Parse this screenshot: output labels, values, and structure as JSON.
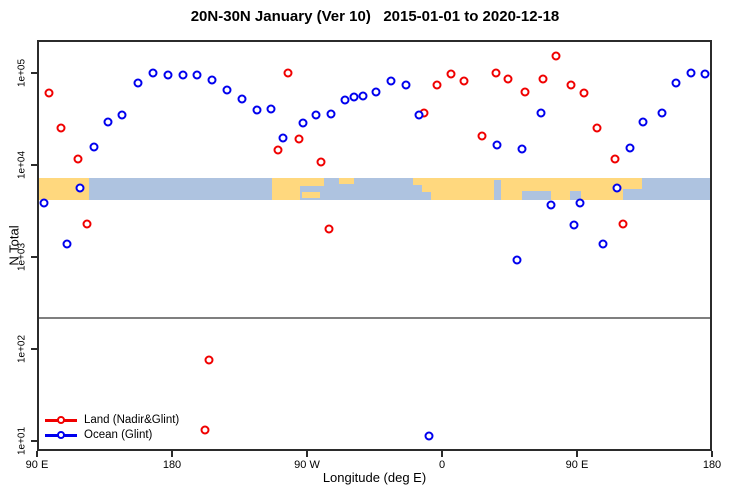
{
  "title": "20N-30N January (Ver 10)   2015-01-01 to 2020-12-18",
  "chart_data": {
    "type": "scatter",
    "title": "20N-30N January (Ver 10)   2015-01-01 to 2020-12-18",
    "xlabel": "Longitude (deg E)",
    "ylabel": "N Total",
    "x_axis": {
      "note": "longitude axis wraps: 90E to 180 to 90W to 0 to 90E to 180 (450 deg span)",
      "range_axis_deg": [
        90,
        540
      ],
      "ticks": [
        {
          "deg": 90,
          "label": "90 E"
        },
        {
          "deg": 180,
          "label": "180"
        },
        {
          "deg": 270,
          "label": "90 W"
        },
        {
          "deg": 360,
          "label": "0"
        },
        {
          "deg": 450,
          "label": "90 E"
        },
        {
          "deg": 540,
          "label": "180"
        }
      ]
    },
    "y_axis": {
      "scale": "log10",
      "range_log10": [
        0.89,
        5.36
      ],
      "ticks": [
        {
          "value": 10,
          "label": "1e+01"
        },
        {
          "value": 100,
          "label": "1e+02"
        },
        {
          "value": 1000,
          "label": "1e+03"
        },
        {
          "value": 10000,
          "label": "1e+04"
        },
        {
          "value": 100000,
          "label": "1e+05"
        }
      ]
    },
    "reference_line": {
      "value": 230,
      "color": "#7f7f7f"
    },
    "map_band": {
      "value_top": 7600,
      "value_bottom": 4350,
      "ocean_color": "#aec3e0",
      "land_color": "#ffd87e",
      "land_patches": [
        {
          "d1": 90,
          "d2": 123,
          "t": 0,
          "b": 1
        },
        {
          "d1": 245,
          "d2": 264,
          "t": 0,
          "b": 1
        },
        {
          "d1": 264,
          "d2": 280,
          "t": 0,
          "b": 0.38
        },
        {
          "d1": 265,
          "d2": 277,
          "t": 0.62,
          "b": 0.9
        },
        {
          "d1": 290,
          "d2": 300,
          "t": 0,
          "b": 0.27
        },
        {
          "d1": 339,
          "d2": 347,
          "t": 0,
          "b": 0.3
        },
        {
          "d1": 345,
          "d2": 479,
          "t": 0,
          "b": 1
        },
        {
          "d1": 479,
          "d2": 492,
          "t": 0,
          "b": 0.5
        }
      ],
      "ocean_notches": [
        {
          "d1": 345,
          "d2": 351,
          "t": 0.65,
          "b": 1
        },
        {
          "d1": 393,
          "d2": 398,
          "t": 0.1,
          "b": 1
        },
        {
          "d1": 412,
          "d2": 431,
          "t": 0.58,
          "b": 1
        },
        {
          "d1": 444,
          "d2": 451,
          "t": 0.6,
          "b": 1
        }
      ]
    },
    "series": [
      {
        "name": "Land (Nadir&Glint)",
        "color": "#f00000",
        "points": [
          [
            96.7,
            63700
          ],
          [
            104.7,
            26500
          ],
          [
            116,
            12200
          ],
          [
            122,
            2400
          ],
          [
            200.7,
            14
          ],
          [
            203.3,
            80
          ],
          [
            249.3,
            15300
          ],
          [
            256,
            105000
          ],
          [
            263.3,
            20100
          ],
          [
            278,
            11300
          ],
          [
            283.3,
            2120
          ],
          [
            346.7,
            38600
          ],
          [
            355.3,
            78000
          ],
          [
            364.7,
            102600
          ],
          [
            373.3,
            86000
          ],
          [
            385.3,
            21700
          ],
          [
            394.7,
            105000
          ],
          [
            402.7,
            90500
          ],
          [
            414,
            65300
          ],
          [
            426,
            90500
          ],
          [
            434.7,
            161000
          ],
          [
            444.7,
            78000
          ],
          [
            453.3,
            63700
          ],
          [
            462,
            26500
          ],
          [
            474,
            12200
          ],
          [
            479.3,
            2400
          ]
        ]
      },
      {
        "name": "Ocean (Glint)",
        "color": "#0000ee",
        "points": [
          [
            93.3,
            4060
          ],
          [
            108.7,
            1460
          ],
          [
            117.3,
            5900
          ],
          [
            126.7,
            16500
          ],
          [
            136,
            30800
          ],
          [
            145.3,
            36700
          ],
          [
            156,
            81800
          ],
          [
            166,
            105000
          ],
          [
            176,
            100000
          ],
          [
            186,
            100000
          ],
          [
            195.3,
            100000
          ],
          [
            205.3,
            88300
          ],
          [
            215.3,
            68700
          ],
          [
            225.3,
            54800
          ],
          [
            235.3,
            41700
          ],
          [
            244.7,
            42700
          ],
          [
            252.7,
            20700
          ],
          [
            266,
            30000
          ],
          [
            274.7,
            36700
          ],
          [
            284.7,
            37700
          ],
          [
            294,
            53500
          ],
          [
            300,
            57700
          ],
          [
            306,
            59100
          ],
          [
            314.7,
            65300
          ],
          [
            324.7,
            86000
          ],
          [
            334.7,
            78000
          ],
          [
            343.3,
            36700
          ],
          [
            350,
            12
          ],
          [
            395.3,
            17300
          ],
          [
            408.7,
            975
          ],
          [
            412,
            15700
          ],
          [
            424.7,
            38600
          ],
          [
            431.3,
            3860
          ],
          [
            446.7,
            2340
          ],
          [
            450.7,
            4060
          ],
          [
            466,
            1460
          ],
          [
            475.3,
            5900
          ],
          [
            484,
            16100
          ],
          [
            492.7,
            30800
          ],
          [
            505.3,
            38600
          ],
          [
            514.7,
            81800
          ],
          [
            524.7,
            105000
          ],
          [
            534,
            102600
          ]
        ]
      }
    ],
    "legend_position": "bottom-left-inside"
  }
}
